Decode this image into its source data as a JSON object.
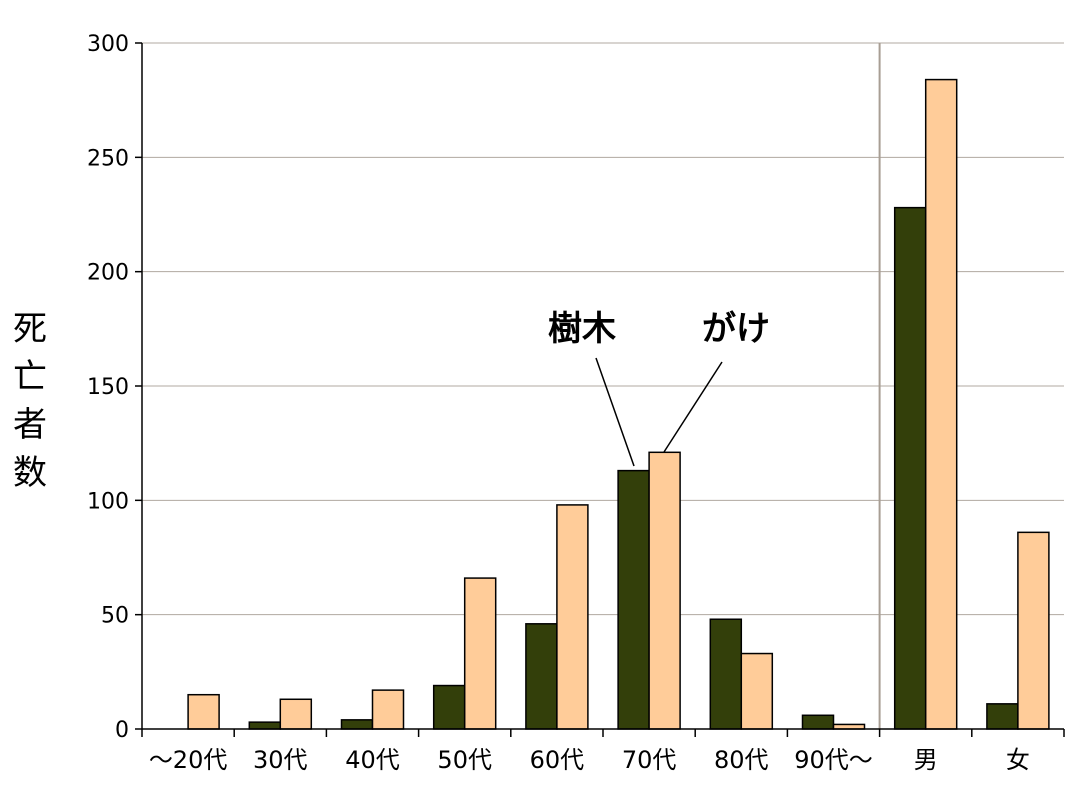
{
  "chart_data": {
    "type": "bar",
    "categories": [
      "〜20代",
      "30代",
      "40代",
      "50代",
      "60代",
      "70代",
      "80代",
      "90代〜",
      "男",
      "女"
    ],
    "series": [
      {
        "name": "樹木",
        "values": [
          0,
          3,
          4,
          19,
          46,
          113,
          48,
          6,
          228,
          11
        ],
        "color": "#333F0A"
      },
      {
        "name": "がけ",
        "values": [
          15,
          13,
          17,
          66,
          98,
          121,
          33,
          2,
          284,
          86
        ],
        "color": "#FFCC99"
      }
    ],
    "ylabel": "死亡者数",
    "ylim": [
      0,
      300
    ],
    "yticks": [
      "0",
      "50",
      "100",
      "150",
      "200",
      "250",
      "300"
    ],
    "grid": true,
    "annotations": [
      {
        "text": "樹木",
        "series": 0,
        "category": 5
      },
      {
        "text": "がけ",
        "series": 1,
        "category": 5
      }
    ]
  }
}
